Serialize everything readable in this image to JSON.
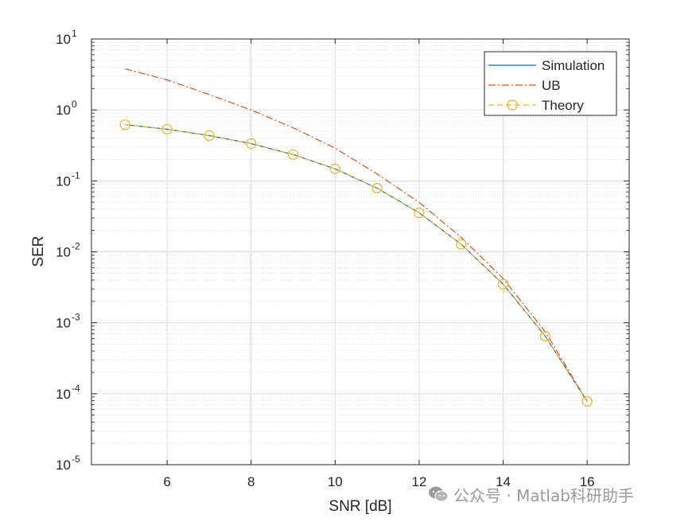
{
  "chart_data": {
    "type": "line",
    "xlabel": "SNR [dB]",
    "ylabel": "SER",
    "xlim": [
      4.2,
      17.0
    ],
    "ylim": [
      1e-05,
      10
    ],
    "yscale": "log",
    "xticks": [
      6,
      8,
      10,
      12,
      14,
      16
    ],
    "yticks": [
      {
        "exp": "-5",
        "value": 1e-05
      },
      {
        "exp": "-4",
        "value": 0.0001
      },
      {
        "exp": "-3",
        "value": 0.001
      },
      {
        "exp": "-2",
        "value": 0.01
      },
      {
        "exp": "-1",
        "value": 0.1
      },
      {
        "exp": "0",
        "value": 1
      },
      {
        "exp": "1",
        "value": 10
      }
    ],
    "tick_base": "10",
    "grid": true,
    "minor_grid": true,
    "legend_position": "top-right",
    "x": [
      5,
      6,
      7,
      8,
      9,
      10,
      11,
      12,
      13,
      14,
      15,
      16
    ],
    "series": [
      {
        "name": "Simulation",
        "style": "solid",
        "color": "#0072BD",
        "marker": "none",
        "values": [
          0.62,
          0.535,
          0.435,
          0.335,
          0.235,
          0.148,
          0.079,
          0.0355,
          0.0128,
          0.0035,
          0.00065,
          7.8e-05
        ]
      },
      {
        "name": "UB",
        "style": "dash-dot",
        "color": "#D95319",
        "marker": "none",
        "values": [
          3.8,
          2.65,
          1.65,
          1.0,
          0.56,
          0.29,
          0.125,
          0.05,
          0.016,
          0.0042,
          0.00075,
          7.8e-05
        ]
      },
      {
        "name": "Theory",
        "style": "dashed",
        "color": "#EDB120",
        "marker": "circle",
        "values": [
          0.62,
          0.535,
          0.435,
          0.335,
          0.235,
          0.148,
          0.079,
          0.0355,
          0.0128,
          0.0035,
          0.00065,
          7.8e-05
        ]
      }
    ]
  },
  "watermark": {
    "text": "公众号 · Matlab科研助手",
    "icon": "wechat-icon"
  }
}
